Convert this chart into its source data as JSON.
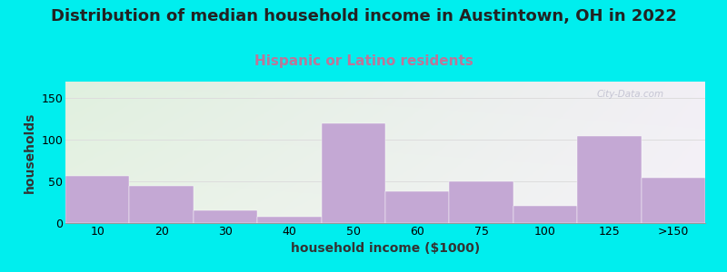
{
  "title": "Distribution of median household income in Austintown, OH in 2022",
  "subtitle": "Hispanic or Latino residents",
  "xlabel": "household income ($1000)",
  "ylabel": "households",
  "categories": [
    "10",
    "20",
    "30",
    "40",
    "50",
    "60",
    "75",
    "100",
    "125",
    ">150"
  ],
  "values": [
    57,
    45,
    15,
    8,
    120,
    38,
    50,
    21,
    105,
    55
  ],
  "bar_color": "#C4A8D4",
  "bar_edgecolor": "none",
  "background_outer": "#00EEEE",
  "plot_bg_topleft": "#DAEEDD",
  "plot_bg_right": "#F0EEF5",
  "grid_color": "#DDDDDD",
  "title_fontsize": 13,
  "subtitle_fontsize": 11,
  "subtitle_color": "#BB7799",
  "axis_label_fontsize": 10,
  "tick_fontsize": 9,
  "ylim": [
    0,
    170
  ],
  "yticks": [
    0,
    50,
    100,
    150
  ],
  "watermark": "City-Data.com"
}
